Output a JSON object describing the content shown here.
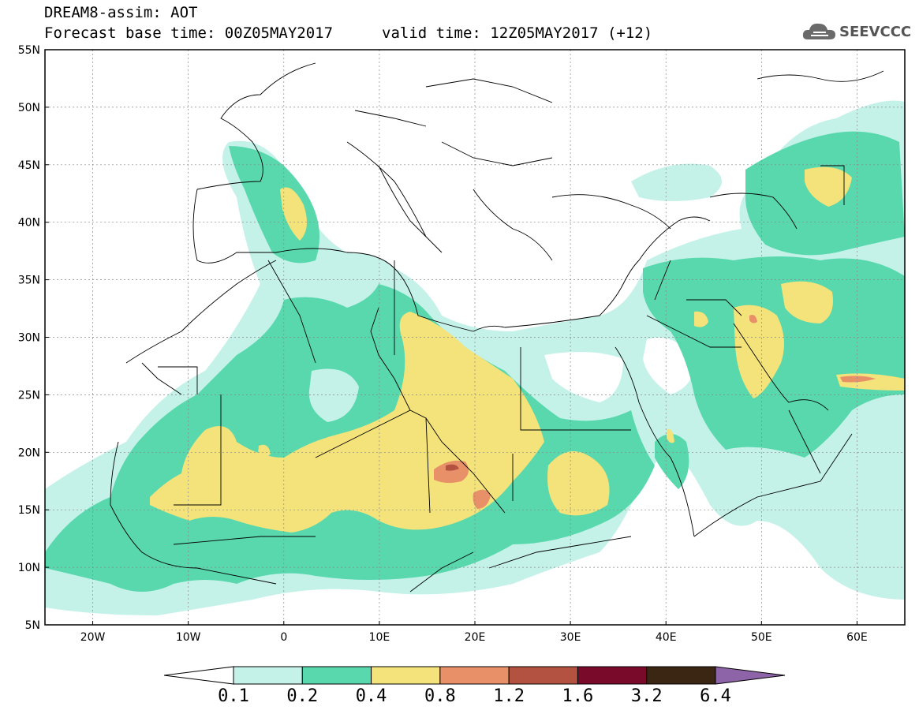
{
  "header": {
    "line1": "DREAM8-assim: AOT",
    "line2": "Forecast base time: 00Z05MAY2017",
    "valid": "valid time: 12Z05MAY2017 (+12)"
  },
  "logo": {
    "text": "SEEVCCC",
    "icon": "cloud-logo-icon"
  },
  "map": {
    "lat_labels": [
      "55N",
      "50N",
      "45N",
      "40N",
      "35N",
      "30N",
      "25N",
      "20N",
      "15N",
      "10N",
      "5N"
    ],
    "lon_labels": [
      "20W",
      "10W",
      "0",
      "10E",
      "20E",
      "30E",
      "40E",
      "50E",
      "60E"
    ],
    "lat_range": [
      5,
      55
    ],
    "lon_range": [
      -25,
      65
    ],
    "grid": "dotted"
  },
  "colorbar": {
    "levels": [
      "0.1",
      "0.2",
      "0.4",
      "0.8",
      "1.2",
      "1.6",
      "3.2",
      "6.4"
    ],
    "colors": [
      "#ffffff",
      "#c4f2e8",
      "#58d8ac",
      "#f4e37a",
      "#e89169",
      "#b35240",
      "#7a0a2a",
      "#3b2614",
      "#8e64a8"
    ]
  }
}
